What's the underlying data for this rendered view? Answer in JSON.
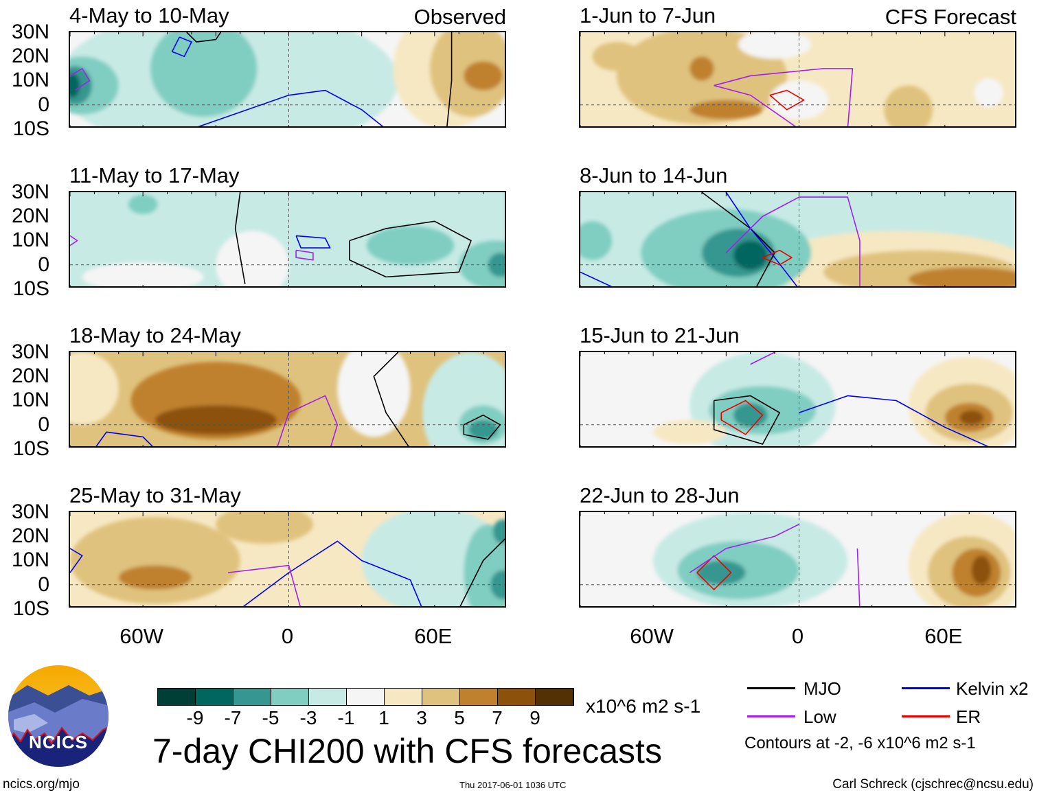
{
  "header": {
    "observed": "Observed",
    "forecast": "CFS Forecast"
  },
  "lat_labels": [
    "30N",
    "20N",
    "10N",
    "0",
    "10S"
  ],
  "lon_labels": [
    "60W",
    "0",
    "60E"
  ],
  "panels": [
    {
      "title": "4-May to 10-May",
      "col": "left",
      "row": 0,
      "base": -1,
      "fields": [
        [
          -25,
          10,
          70,
          30,
          -3
        ],
        [
          20,
          15,
          18,
          15,
          -3
        ],
        [
          -35,
          15,
          22,
          20,
          -5
        ],
        [
          -85,
          8,
          15,
          12,
          -5
        ],
        [
          -88,
          8,
          7,
          8,
          -7
        ],
        [
          -89,
          8,
          3,
          5,
          -9
        ],
        [
          65,
          15,
          22,
          25,
          1
        ],
        [
          75,
          15,
          17,
          20,
          3
        ],
        [
          80,
          12,
          8,
          6,
          5
        ]
      ],
      "contours": [
        {
          "type": "kelvin",
          "points": [
            [
              -45,
              28
            ],
            [
              -48,
              22
            ],
            [
              -43,
              20
            ],
            [
              -40,
              26
            ],
            [
              -45,
              28
            ]
          ]
        },
        {
          "type": "mjo",
          "points": [
            [
              -42,
              30
            ],
            [
              -38,
              26
            ],
            [
              -30,
              27
            ],
            [
              -28,
              30
            ]
          ]
        },
        {
          "type": "kelvin",
          "points": [
            [
              -40,
              -10
            ],
            [
              -20,
              -3
            ],
            [
              0,
              4
            ],
            [
              15,
              6
            ],
            [
              30,
              -2
            ],
            [
              40,
              -10
            ]
          ]
        },
        {
          "type": "mjo",
          "points": [
            [
              65,
              -10
            ],
            [
              67,
              10
            ],
            [
              67,
              30
            ]
          ]
        },
        {
          "type": "low",
          "points": [
            [
              -90,
              12
            ],
            [
              -85,
              15
            ],
            [
              -82,
              10
            ],
            [
              -88,
              6
            ]
          ]
        }
      ]
    },
    {
      "title": "11-May to 17-May",
      "col": "left",
      "row": 1,
      "base": -3,
      "fields": [
        [
          -15,
          0,
          15,
          14,
          -1
        ],
        [
          -60,
          -5,
          25,
          6,
          -1
        ],
        [
          -60,
          25,
          6,
          4,
          -5
        ],
        [
          50,
          8,
          18,
          8,
          -5
        ],
        [
          85,
          0,
          15,
          10,
          -5
        ],
        [
          87,
          0,
          5,
          5,
          -7
        ]
      ],
      "contours": [
        {
          "type": "mjo",
          "points": [
            [
              -20,
              30
            ],
            [
              -22,
              15
            ],
            [
              -18,
              -8
            ]
          ]
        },
        {
          "type": "mjo",
          "points": [
            [
              25,
              10
            ],
            [
              40,
              15
            ],
            [
              60,
              18
            ],
            [
              75,
              10
            ],
            [
              70,
              -3
            ],
            [
              40,
              -5
            ],
            [
              25,
              2
            ],
            [
              25,
              10
            ]
          ]
        },
        {
          "type": "kelvin",
          "points": [
            [
              3,
              12
            ],
            [
              15,
              11
            ],
            [
              17,
              7
            ],
            [
              5,
              7
            ],
            [
              3,
              12
            ]
          ]
        },
        {
          "type": "low",
          "points": [
            [
              3,
              6
            ],
            [
              10,
              5
            ],
            [
              10,
              2
            ],
            [
              3,
              3
            ],
            [
              3,
              6
            ]
          ]
        },
        {
          "type": "low",
          "points": [
            [
              -90,
              12
            ],
            [
              -87,
              10
            ],
            [
              -90,
              8
            ]
          ]
        }
      ]
    },
    {
      "title": "18-May to 24-May",
      "col": "left",
      "row": 2,
      "base": 3,
      "fields": [
        [
          -85,
          15,
          15,
          15,
          1
        ],
        [
          -30,
          10,
          35,
          16,
          5
        ],
        [
          -30,
          2,
          25,
          6,
          7
        ],
        [
          35,
          15,
          15,
          20,
          -1
        ],
        [
          75,
          5,
          20,
          25,
          -3
        ],
        [
          80,
          0,
          10,
          8,
          -5
        ],
        [
          80,
          -2,
          6,
          4,
          -7
        ]
      ],
      "contours": [
        {
          "type": "low",
          "points": [
            [
              -5,
              -10
            ],
            [
              0,
              5
            ],
            [
              15,
              12
            ],
            [
              20,
              0
            ],
            [
              17,
              -10
            ]
          ]
        },
        {
          "type": "kelvin",
          "points": [
            [
              -80,
              -10
            ],
            [
              -75,
              -3
            ],
            [
              -60,
              -5
            ],
            [
              -55,
              -10
            ]
          ]
        },
        {
          "type": "mjo",
          "points": [
            [
              72,
              0
            ],
            [
              80,
              4
            ],
            [
              87,
              0
            ],
            [
              82,
              -6
            ],
            [
              72,
              -4
            ],
            [
              72,
              0
            ]
          ]
        },
        {
          "type": "mjo",
          "points": [
            [
              45,
              30
            ],
            [
              35,
              20
            ],
            [
              40,
              5
            ],
            [
              50,
              -10
            ]
          ]
        }
      ]
    },
    {
      "title": "25-May to 31-May",
      "col": "left",
      "row": 3,
      "base": 1,
      "fields": [
        [
          -55,
          10,
          35,
          18,
          3
        ],
        [
          -55,
          3,
          15,
          5,
          5
        ],
        [
          -10,
          25,
          20,
          8,
          3
        ],
        [
          60,
          10,
          30,
          22,
          -3
        ],
        [
          82,
          5,
          10,
          20,
          -5
        ],
        [
          88,
          0,
          5,
          6,
          -7
        ],
        [
          88,
          22,
          4,
          5,
          -7
        ]
      ],
      "contours": [
        {
          "type": "kelvin",
          "points": [
            [
              -20,
              -10
            ],
            [
              0,
              5
            ],
            [
              20,
              18
            ],
            [
              30,
              10
            ],
            [
              50,
              2
            ],
            [
              55,
              -10
            ]
          ]
        },
        {
          "type": "low",
          "points": [
            [
              -25,
              5
            ],
            [
              0,
              8
            ],
            [
              5,
              -10
            ]
          ]
        },
        {
          "type": "mjo",
          "points": [
            [
              70,
              -10
            ],
            [
              80,
              10
            ],
            [
              90,
              20
            ]
          ]
        },
        {
          "type": "kelvin",
          "points": [
            [
              -90,
              15
            ],
            [
              -85,
              12
            ],
            [
              -90,
              5
            ]
          ]
        }
      ]
    },
    {
      "title": "1-Jun to 7-Jun",
      "col": "right",
      "row": 0,
      "base": 1,
      "fields": [
        [
          -40,
          12,
          35,
          20,
          3
        ],
        [
          -75,
          20,
          10,
          6,
          3
        ],
        [
          -30,
          -2,
          15,
          4,
          5
        ],
        [
          -40,
          15,
          5,
          5,
          5
        ],
        [
          0,
          2,
          12,
          8,
          -1
        ],
        [
          -10,
          25,
          15,
          6,
          -1
        ],
        [
          45,
          -2,
          10,
          10,
          3
        ],
        [
          78,
          5,
          6,
          6,
          -1
        ]
      ],
      "contours": [
        {
          "type": "low",
          "points": [
            [
              -35,
              8
            ],
            [
              -20,
              12
            ],
            [
              10,
              15
            ],
            [
              22,
              15
            ],
            [
              20,
              -10
            ]
          ]
        },
        {
          "type": "low",
          "points": [
            [
              -35,
              8
            ],
            [
              -20,
              4
            ],
            [
              0,
              -10
            ]
          ]
        },
        {
          "type": "er",
          "points": [
            [
              -12,
              4
            ],
            [
              -5,
              6
            ],
            [
              2,
              2
            ],
            [
              -5,
              -2
            ],
            [
              -12,
              4
            ]
          ]
        }
      ]
    },
    {
      "title": "8-Jun to 14-Jun",
      "col": "right",
      "row": 1,
      "base": -3,
      "fields": [
        [
          40,
          0,
          55,
          14,
          1
        ],
        [
          50,
          -3,
          40,
          9,
          3
        ],
        [
          70,
          -6,
          25,
          5,
          5
        ],
        [
          -30,
          5,
          35,
          18,
          -5
        ],
        [
          -25,
          5,
          15,
          10,
          -7
        ],
        [
          -85,
          10,
          8,
          8,
          -5
        ],
        [
          -20,
          4,
          7,
          6,
          -9
        ]
      ],
      "contours": [
        {
          "type": "mjo",
          "points": [
            [
              -40,
              30
            ],
            [
              -20,
              15
            ],
            [
              -10,
              5
            ],
            [
              -18,
              -10
            ]
          ]
        },
        {
          "type": "kelvin",
          "points": [
            [
              -30,
              30
            ],
            [
              -20,
              15
            ],
            [
              -10,
              3
            ],
            [
              0,
              -10
            ]
          ]
        },
        {
          "type": "low",
          "points": [
            [
              -30,
              5
            ],
            [
              -15,
              20
            ],
            [
              0,
              28
            ],
            [
              20,
              28
            ],
            [
              25,
              10
            ],
            [
              25,
              -10
            ]
          ]
        },
        {
          "type": "er",
          "points": [
            [
              -15,
              3
            ],
            [
              -8,
              6
            ],
            [
              -3,
              3
            ],
            [
              -8,
              0
            ],
            [
              -15,
              3
            ]
          ]
        },
        {
          "type": "kelvin",
          "points": [
            [
              -90,
              -3
            ],
            [
              -75,
              -10
            ]
          ]
        }
      ]
    },
    {
      "title": "15-Jun to 21-Jun",
      "col": "right",
      "row": 2,
      "base": -1,
      "fields": [
        [
          -15,
          8,
          30,
          22,
          -3
        ],
        [
          -15,
          6,
          22,
          10,
          -5
        ],
        [
          -20,
          4,
          7,
          5,
          -7
        ],
        [
          -45,
          -3,
          15,
          5,
          1
        ],
        [
          70,
          8,
          25,
          20,
          1
        ],
        [
          70,
          5,
          18,
          12,
          3
        ],
        [
          70,
          3,
          10,
          6,
          5
        ],
        [
          71,
          3,
          5,
          3,
          7
        ]
      ],
      "contours": [
        {
          "type": "mjo",
          "points": [
            [
              -35,
              10
            ],
            [
              -20,
              12
            ],
            [
              -8,
              5
            ],
            [
              -15,
              -8
            ],
            [
              -35,
              -2
            ],
            [
              -35,
              10
            ]
          ]
        },
        {
          "type": "er",
          "points": [
            [
              -32,
              5
            ],
            [
              -22,
              10
            ],
            [
              -15,
              4
            ],
            [
              -22,
              -4
            ],
            [
              -32,
              2
            ],
            [
              -32,
              5
            ]
          ]
        },
        {
          "type": "kelvin",
          "points": [
            [
              0,
              5
            ],
            [
              20,
              12
            ],
            [
              40,
              10
            ],
            [
              60,
              -1
            ],
            [
              80,
              -10
            ]
          ]
        },
        {
          "type": "low",
          "points": [
            [
              -20,
              25
            ],
            [
              -10,
              30
            ]
          ]
        }
      ]
    },
    {
      "title": "22-Jun to 28-Jun",
      "col": "right",
      "row": 3,
      "base": -1,
      "fields": [
        [
          -20,
          10,
          40,
          20,
          -3
        ],
        [
          -25,
          6,
          25,
          12,
          -5
        ],
        [
          -32,
          5,
          10,
          5,
          -7
        ],
        [
          70,
          8,
          25,
          22,
          1
        ],
        [
          70,
          5,
          17,
          15,
          3
        ],
        [
          73,
          5,
          10,
          10,
          5
        ],
        [
          75,
          6,
          4,
          6,
          7
        ]
      ],
      "contours": [
        {
          "type": "er",
          "points": [
            [
              -42,
              5
            ],
            [
              -35,
              12
            ],
            [
              -28,
              5
            ],
            [
              -35,
              -2
            ],
            [
              -42,
              5
            ]
          ]
        },
        {
          "type": "low",
          "points": [
            [
              -45,
              5
            ],
            [
              -30,
              15
            ],
            [
              -10,
              20
            ],
            [
              0,
              25
            ]
          ]
        },
        {
          "type": "low",
          "points": [
            [
              24,
              15
            ],
            [
              25,
              -10
            ]
          ]
        }
      ]
    }
  ],
  "colorbar": {
    "colors": [
      "#003f35",
      "#01665e",
      "#35978f",
      "#80cdc1",
      "#c7eae5",
      "#f5f5f5",
      "#f6e8c3",
      "#dfc27d",
      "#bf812d",
      "#8c510a",
      "#543005"
    ],
    "ticks": [
      "-9",
      "-7",
      "-5",
      "-3",
      "-1",
      "1",
      "3",
      "5",
      "7",
      "9"
    ],
    "units": "x10^6 m2 s-1"
  },
  "legend": {
    "mjo": "MJO",
    "kelvin": "Kelvin x2",
    "low": "Low",
    "er": "ER",
    "note": "Contours at -2, -6 x10^6 m2 s-1",
    "line_colors": {
      "mjo": "#000000",
      "kelvin": "#0000ee",
      "low": "#a020f0",
      "er": "#ee0000"
    }
  },
  "title": "7-day CHI200 with CFS forecasts",
  "logo": "NCICS",
  "footer": {
    "url": "ncics.org/mjo",
    "timestamp": "Thu 2017-06-01 1036 UTC",
    "author": "Carl Schreck (cjschrec@ncsu.edu)"
  }
}
